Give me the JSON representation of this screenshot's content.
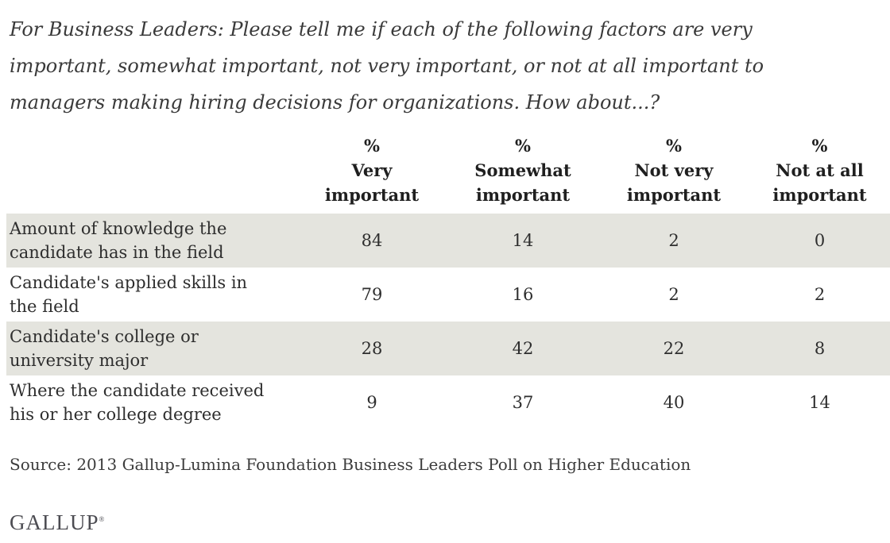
{
  "question": {
    "lines": [
      "For Business Leaders: Please tell me if each of the following factors are very",
      "important, somewhat important, not very important, or not at all important to",
      "managers making hiring decisions for organizations. How about...?"
    ]
  },
  "table": {
    "columns": [
      {
        "header": [
          "%",
          "Very",
          "important"
        ]
      },
      {
        "header": [
          "%",
          "Somewhat",
          "important"
        ]
      },
      {
        "header": [
          "%",
          "Not very",
          "important"
        ]
      },
      {
        "header": [
          "%",
          "Not at all",
          "important"
        ]
      }
    ],
    "rows": [
      {
        "label": [
          "Amount of knowledge the",
          "candidate has in the field"
        ],
        "values": [
          84,
          14,
          2,
          0
        ]
      },
      {
        "label": [
          "Candidate's applied skills in",
          "the field"
        ],
        "values": [
          79,
          16,
          2,
          2
        ]
      },
      {
        "label": [
          "Candidate's college or",
          "university major"
        ],
        "values": [
          28,
          42,
          22,
          8
        ]
      },
      {
        "label": [
          "Where the candidate received",
          "his or her college degree"
        ],
        "values": [
          9,
          37,
          40,
          14
        ]
      }
    ]
  },
  "source": "Source: 2013 Gallup-Lumina Foundation Business Leaders Poll on Higher Education",
  "logo": {
    "text": "GALLUP",
    "mark": "®"
  },
  "colors": {
    "row_shading": "#e4e4de",
    "text": "#2e2e2e",
    "logo_gray": "#4c4c52"
  },
  "chart_data": {
    "type": "table",
    "title": "For Business Leaders: Please tell me if each of the following factors are very important, somewhat important, not very important, or not at all important to managers making hiring decisions for organizations. How about...?",
    "categories": [
      "Amount of knowledge the candidate has in the field",
      "Candidate's applied skills in the field",
      "Candidate's college or university major",
      "Where the candidate received his or her college degree"
    ],
    "series": [
      {
        "name": "% Very important",
        "values": [
          84,
          79,
          28,
          9
        ]
      },
      {
        "name": "% Somewhat important",
        "values": [
          14,
          16,
          42,
          37
        ]
      },
      {
        "name": "% Not very important",
        "values": [
          2,
          2,
          22,
          40
        ]
      },
      {
        "name": "% Not at all important",
        "values": [
          0,
          2,
          8,
          14
        ]
      }
    ],
    "source": "Source: 2013 Gallup-Lumina Foundation Business Leaders Poll on Higher Education",
    "layout": "striped rows, values in percent, no gridlines, no legend"
  }
}
